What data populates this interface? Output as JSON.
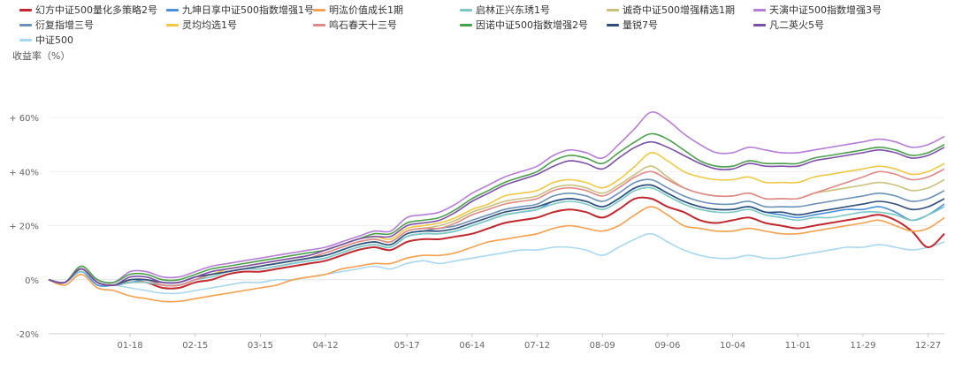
{
  "chart_data": {
    "type": "line",
    "title": "",
    "ylabel": "收益率（%）",
    "xlabel": "",
    "ylim": [
      -20,
      78
    ],
    "y_ticks": [
      {
        "value": 60,
        "label": "+ 60%"
      },
      {
        "value": 40,
        "label": "+ 40%"
      },
      {
        "value": 20,
        "label": "+ 20%"
      },
      {
        "value": 0,
        "label": "0%"
      },
      {
        "value": -20,
        "label": "-20%"
      }
    ],
    "grid": true,
    "legend_position": "top-left",
    "x_tick_labels": [
      "01-18",
      "02-15",
      "03-15",
      "04-12",
      "05-17",
      "06-14",
      "07-12",
      "08-09",
      "09-06",
      "10-04",
      "11-01",
      "11-29",
      "12-27"
    ],
    "x_tick_positions": [
      5,
      9,
      13,
      17,
      22,
      26,
      30,
      34,
      38,
      42,
      46,
      50,
      54
    ],
    "x_range": [
      0,
      55
    ],
    "series": [
      {
        "name": "幻方中证500量化多策略2号",
        "color": "#c0282e",
        "values": [
          0,
          -1,
          4,
          -1,
          -2,
          -1,
          -1,
          -3,
          -3,
          -1,
          0,
          2,
          3,
          3,
          4,
          5,
          6,
          7,
          9,
          11,
          12,
          11,
          14,
          15,
          15,
          16,
          17,
          19,
          21,
          22,
          23,
          25,
          26,
          25,
          23,
          26,
          30,
          30,
          27,
          25,
          22,
          21,
          22,
          23,
          21,
          20,
          19,
          20,
          21,
          22,
          23,
          24,
          22,
          18,
          12,
          17
        ]
      },
      {
        "name": "九坤日享中证500指数增强1号",
        "color": "#4a90d9",
        "values": [
          0,
          -1,
          3,
          -2,
          -2,
          -1,
          0,
          -2,
          -2,
          0,
          2,
          3,
          4,
          4,
          5,
          6,
          7,
          8,
          10,
          12,
          13,
          12,
          16,
          17,
          17,
          18,
          20,
          22,
          24,
          25,
          26,
          29,
          30,
          29,
          27,
          30,
          34,
          35,
          32,
          29,
          27,
          26,
          26,
          27,
          25,
          24,
          23,
          24,
          25,
          26,
          26,
          27,
          25,
          22,
          24,
          28
        ]
      },
      {
        "name": "明汯价值成长1期",
        "color": "#f5a04f",
        "values": [
          0,
          -2,
          2,
          -3,
          -4,
          -6,
          -7,
          -8,
          -8,
          -7,
          -6,
          -5,
          -4,
          -3,
          -2,
          0,
          1,
          2,
          4,
          5,
          6,
          6,
          8,
          9,
          9,
          10,
          12,
          14,
          15,
          16,
          17,
          19,
          20,
          19,
          18,
          20,
          24,
          27,
          24,
          20,
          19,
          18,
          18,
          19,
          18,
          17,
          17,
          18,
          19,
          20,
          21,
          22,
          20,
          18,
          19,
          23
        ]
      },
      {
        "name": "启林正兴东琇1号",
        "color": "#7cc9c4",
        "values": [
          0,
          -1,
          3,
          -1,
          -2,
          -1,
          -1,
          -2,
          -2,
          0,
          1,
          3,
          4,
          4,
          5,
          6,
          7,
          8,
          10,
          12,
          13,
          12,
          16,
          17,
          17,
          18,
          20,
          22,
          24,
          25,
          26,
          28,
          29,
          28,
          26,
          29,
          33,
          34,
          31,
          28,
          26,
          25,
          25,
          26,
          24,
          23,
          22,
          23,
          23,
          24,
          25,
          25,
          24,
          22,
          24,
          27
        ]
      },
      {
        "name": "诚奇中证500增强精选1期",
        "color": "#c9c07a",
        "values": [
          0,
          -1,
          4,
          -1,
          -2,
          0,
          0,
          -2,
          -2,
          0,
          2,
          3,
          4,
          5,
          6,
          7,
          8,
          10,
          12,
          14,
          15,
          14,
          18,
          19,
          20,
          22,
          25,
          27,
          29,
          30,
          31,
          34,
          35,
          34,
          32,
          35,
          39,
          42,
          38,
          34,
          32,
          31,
          31,
          32,
          30,
          30,
          30,
          32,
          33,
          34,
          35,
          36,
          35,
          33,
          34,
          37
        ]
      },
      {
        "name": "天演中证500指数增强3号",
        "color": "#b67dd8",
        "values": [
          0,
          -1,
          5,
          0,
          -1,
          3,
          3,
          1,
          1,
          3,
          5,
          6,
          7,
          8,
          9,
          10,
          11,
          12,
          14,
          16,
          18,
          18,
          23,
          24,
          25,
          28,
          32,
          35,
          38,
          40,
          42,
          46,
          48,
          47,
          45,
          50,
          56,
          62,
          59,
          54,
          50,
          47,
          47,
          49,
          48,
          47,
          47,
          48,
          49,
          50,
          51,
          52,
          51,
          49,
          50,
          53
        ]
      },
      {
        "name": "衍复指增三号",
        "color": "#6b91b8",
        "values": [
          0,
          -1,
          4,
          -1,
          -2,
          0,
          0,
          -2,
          -2,
          0,
          2,
          3,
          4,
          5,
          6,
          7,
          8,
          9,
          11,
          13,
          14,
          13,
          17,
          18,
          19,
          20,
          22,
          24,
          26,
          27,
          28,
          31,
          32,
          31,
          29,
          32,
          36,
          37,
          34,
          31,
          29,
          28,
          28,
          29,
          27,
          27,
          27,
          28,
          29,
          30,
          31,
          32,
          31,
          29,
          30,
          33
        ]
      },
      {
        "name": "灵均均选1号",
        "color": "#f0c843",
        "values": [
          0,
          -1,
          4,
          -1,
          -2,
          0,
          0,
          -1,
          -1,
          1,
          2,
          4,
          5,
          6,
          7,
          8,
          9,
          11,
          13,
          15,
          16,
          15,
          19,
          20,
          21,
          23,
          26,
          28,
          31,
          32,
          33,
          36,
          37,
          36,
          34,
          37,
          42,
          47,
          44,
          40,
          38,
          37,
          37,
          38,
          36,
          36,
          36,
          38,
          39,
          40,
          41,
          42,
          41,
          39,
          40,
          43
        ]
      },
      {
        "name": "鸣石春天十三号",
        "color": "#e08888",
        "values": [
          0,
          -1,
          4,
          -1,
          -2,
          0,
          0,
          -2,
          -2,
          0,
          2,
          3,
          4,
          5,
          6,
          7,
          8,
          10,
          12,
          14,
          15,
          14,
          18,
          19,
          19,
          21,
          24,
          26,
          28,
          29,
          30,
          33,
          34,
          33,
          31,
          34,
          38,
          40,
          37,
          34,
          32,
          31,
          31,
          32,
          30,
          30,
          30,
          32,
          34,
          36,
          38,
          40,
          39,
          37,
          38,
          41
        ]
      },
      {
        "name": "因诺中证500指数增强2号",
        "color": "#4aa04a",
        "values": [
          0,
          -1,
          5,
          0,
          -1,
          2,
          2,
          0,
          0,
          2,
          4,
          5,
          6,
          7,
          8,
          9,
          10,
          11,
          13,
          15,
          17,
          17,
          21,
          22,
          23,
          26,
          30,
          33,
          36,
          38,
          40,
          44,
          46,
          45,
          43,
          47,
          51,
          54,
          52,
          48,
          44,
          42,
          42,
          44,
          43,
          43,
          43,
          45,
          46,
          47,
          48,
          49,
          48,
          46,
          47,
          50
        ]
      },
      {
        "name": "量锐7号",
        "color": "#2e4f7a",
        "values": [
          0,
          -1,
          4,
          -1,
          -2,
          0,
          0,
          -1,
          -1,
          1,
          2,
          3,
          4,
          5,
          6,
          7,
          8,
          9,
          11,
          13,
          14,
          13,
          17,
          18,
          18,
          19,
          21,
          23,
          25,
          26,
          27,
          29,
          30,
          29,
          27,
          30,
          34,
          35,
          32,
          29,
          27,
          26,
          26,
          27,
          25,
          25,
          24,
          25,
          26,
          27,
          28,
          29,
          28,
          26,
          27,
          30
        ]
      },
      {
        "name": "凡二英火5号",
        "color": "#7b4fa8",
        "values": [
          0,
          -1,
          4,
          -1,
          -2,
          1,
          1,
          -1,
          -1,
          1,
          3,
          4,
          5,
          6,
          7,
          8,
          9,
          11,
          13,
          15,
          16,
          16,
          20,
          21,
          22,
          25,
          29,
          32,
          35,
          37,
          39,
          42,
          44,
          43,
          41,
          45,
          49,
          51,
          49,
          46,
          43,
          41,
          41,
          43,
          42,
          42,
          42,
          44,
          45,
          46,
          47,
          48,
          47,
          45,
          46,
          49
        ]
      },
      {
        "name": "中证500",
        "color": "#a8d8f0",
        "values": [
          0,
          -1,
          3,
          -2,
          -2,
          -3,
          -4,
          -5,
          -5,
          -4,
          -3,
          -2,
          -1,
          -1,
          0,
          0,
          1,
          2,
          3,
          4,
          5,
          4,
          6,
          7,
          6,
          7,
          8,
          9,
          10,
          11,
          11,
          12,
          12,
          11,
          9,
          12,
          15,
          17,
          14,
          11,
          9,
          8,
          8,
          9,
          8,
          8,
          9,
          10,
          11,
          12,
          12,
          13,
          12,
          11,
          12,
          14
        ]
      }
    ],
    "legend_labels": [
      "幻方中证500量化多策略2号",
      "九坤日享中证500指数增强1号",
      "明汯价值成长1期",
      "启林正兴东琇1号",
      "诚奇中证500增强精选1期",
      "天演中证500指数增强3号",
      "衍复指增三号",
      "灵均均选1号",
      "鸣石春天十三号",
      "因诺中证500指数增强2号",
      "量锐7号",
      "凡二英火5号",
      "中证500"
    ]
  }
}
